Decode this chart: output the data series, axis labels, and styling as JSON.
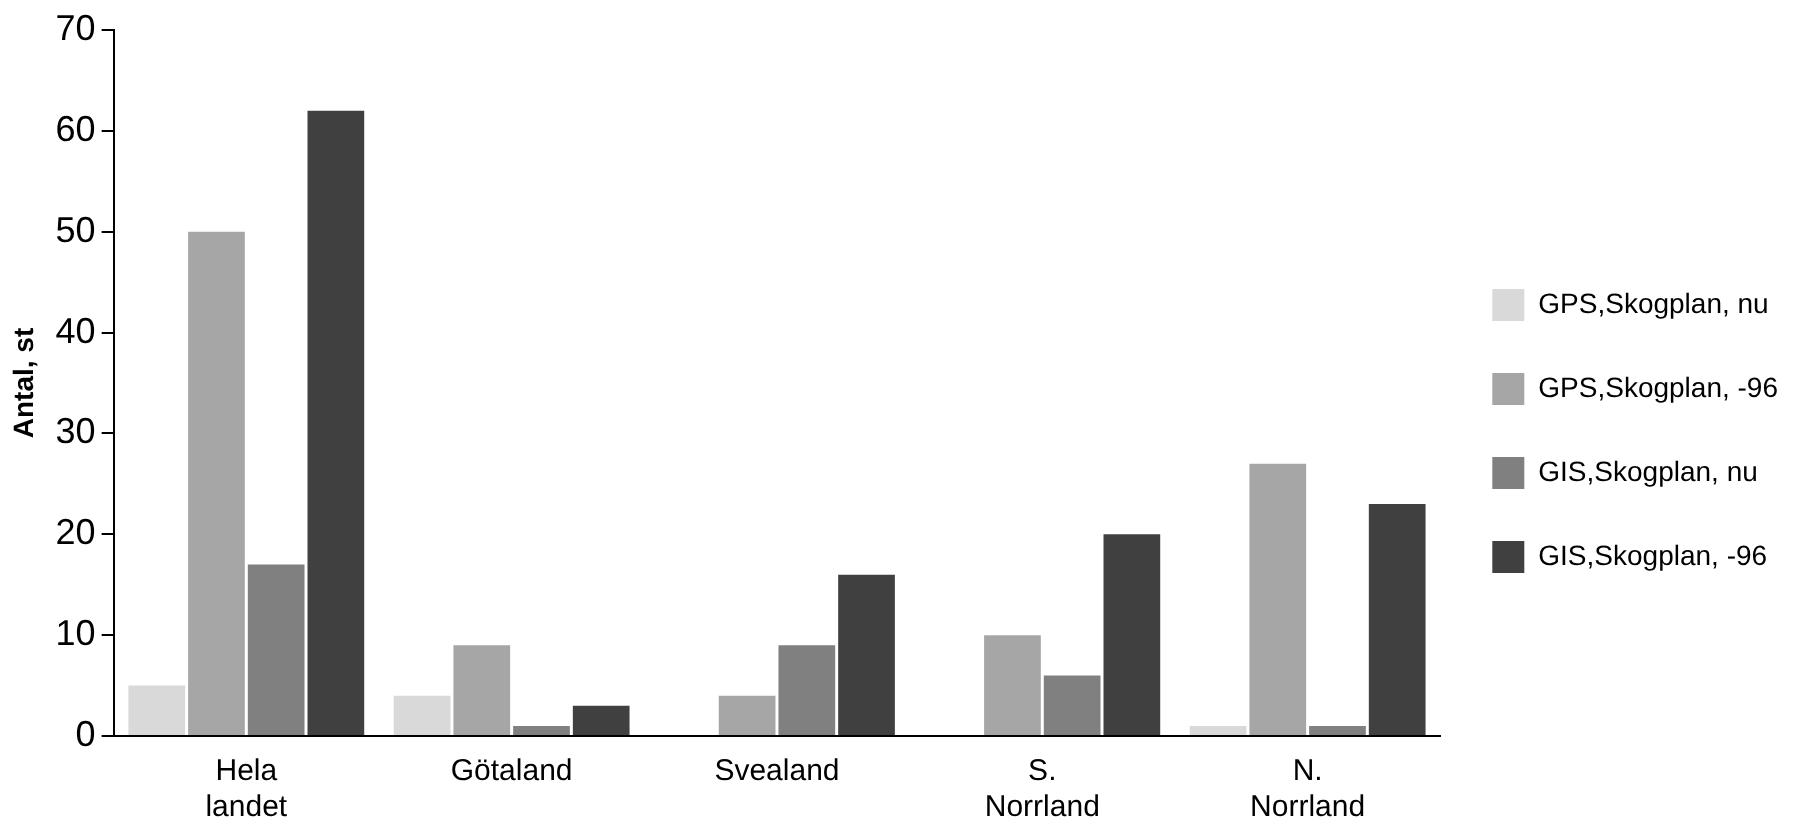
{
  "chart_data": {
    "type": "bar",
    "ylabel": "Antal, st",
    "categories": [
      "Hela landet",
      "Götaland",
      "Svealand",
      "S. Norrland",
      "N. Norrland"
    ],
    "series": [
      {
        "name": "GPS,Skogplan, nu",
        "color": "#d9d9d9",
        "values": [
          5,
          4,
          null,
          null,
          1
        ]
      },
      {
        "name": "GPS,Skogplan, -96",
        "color": "#a6a6a6",
        "values": [
          50,
          9,
          4,
          10,
          27
        ]
      },
      {
        "name": "GIS,Skogplan, nu",
        "color": "#808080",
        "values": [
          17,
          1,
          9,
          6,
          1
        ]
      },
      {
        "name": "GIS,Skogplan, -96",
        "color": "#404040",
        "values": [
          62,
          3,
          16,
          20,
          23
        ]
      }
    ],
    "ylim": [
      0,
      70
    ],
    "yticks": [
      0,
      10,
      20,
      30,
      40,
      50,
      60,
      70
    ],
    "grid": false,
    "legend": "right"
  }
}
